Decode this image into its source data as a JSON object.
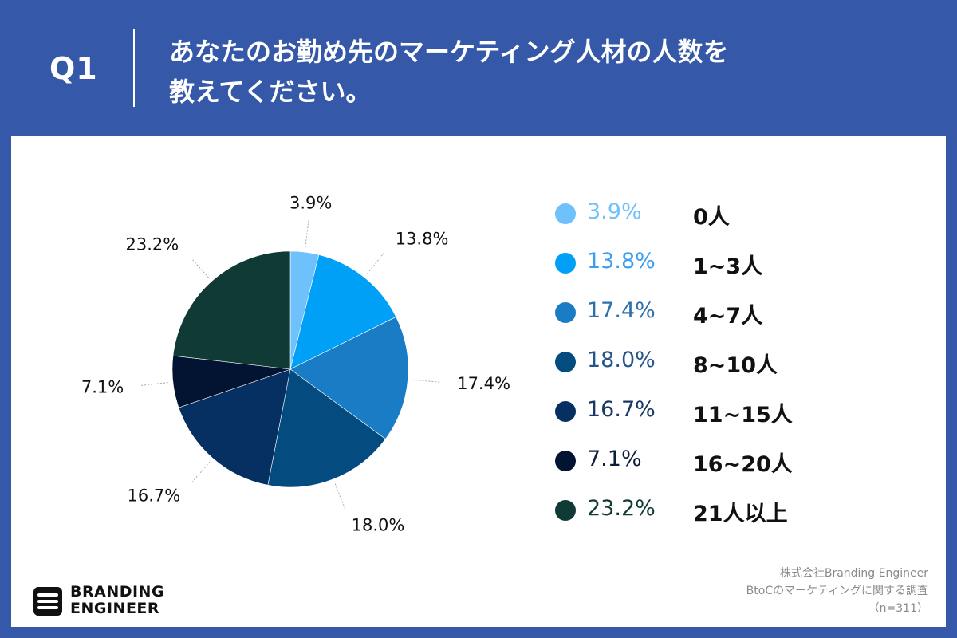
{
  "header": {
    "question_number": "Q1",
    "title_line1": "あなたのお勤め先のマーケティング人材の人数を",
    "title_line2": "教えてください。"
  },
  "chart_data": {
    "type": "pie",
    "title": "",
    "series": [
      {
        "name": "0人",
        "value": 3.9,
        "label": "3.9%",
        "color": "#6ec1fb"
      },
      {
        "name": "1~3人",
        "value": 13.8,
        "label": "13.8%",
        "color": "#00a0f7"
      },
      {
        "name": "4~7人",
        "value": 17.4,
        "label": "17.4%",
        "color": "#1a7cc4"
      },
      {
        "name": "8~10人",
        "value": 18.0,
        "label": "18.0%",
        "color": "#044b80"
      },
      {
        "name": "11~15人",
        "value": 16.7,
        "label": "16.7%",
        "color": "#053061"
      },
      {
        "name": "16~20人",
        "value": 7.1,
        "label": "7.1%",
        "color": "#031433"
      },
      {
        "name": "21人以上",
        "value": 23.2,
        "label": "23.2%",
        "color": "#0f3a36"
      }
    ],
    "legend_position": "right"
  },
  "legend_text_colors": [
    "#6ec1fb",
    "#3a9ff2",
    "#2f6fae",
    "#24548a",
    "#1a3768",
    "#0e1c3c",
    "#133a35"
  ],
  "logo": {
    "line1": "BRANDING",
    "line2": "ENGINEER"
  },
  "source": {
    "line1": "株式会社Branding Engineer",
    "line2": "BtoCのマーケティングに関する調査",
    "line3": "（n=311）"
  }
}
